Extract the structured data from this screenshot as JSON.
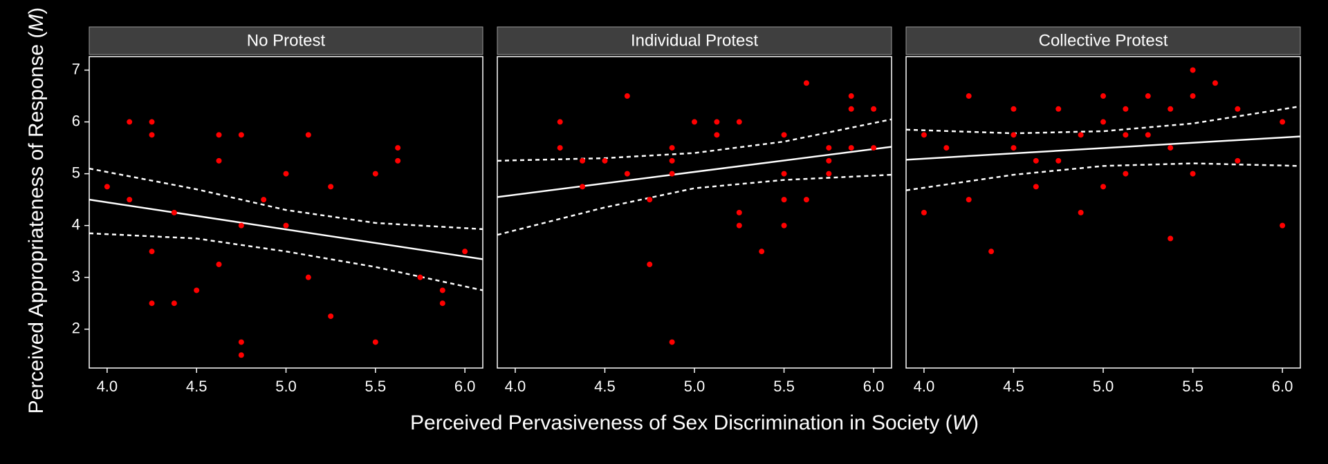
{
  "shared": {
    "ylabel": [
      "Perceived Appropriateness of Response (",
      "M",
      ")"
    ],
    "xlabel": [
      "Perceived Pervasiveness of Sex Discrimination in Society (",
      "W",
      ")"
    ],
    "ylim": [
      1.25,
      7.26
    ],
    "yticks": [
      2,
      3,
      4,
      5,
      6,
      7
    ]
  },
  "chart_data": [
    {
      "type": "scatter",
      "title": "No Protest",
      "xlim": [
        3.9,
        6.1
      ],
      "xticks": [
        {
          "value": 4,
          "label": "4.0"
        },
        {
          "value": 4.5,
          "label": "4.5"
        },
        {
          "value": 5,
          "label": "5.0"
        },
        {
          "value": 5.5,
          "label": "5.5"
        },
        {
          "value": 6,
          "label": "6.0"
        }
      ],
      "points": {
        "color": "#ff0000",
        "x": [
          4.0,
          4.125,
          4.125,
          4.25,
          4.25,
          4.25,
          4.25,
          4.375,
          4.375,
          4.5,
          4.625,
          4.625,
          4.625,
          4.75,
          4.75,
          4.75,
          4.75,
          4.875,
          5.0,
          5.0,
          5.125,
          5.125,
          5.25,
          5.25,
          5.5,
          5.5,
          5.625,
          5.625,
          5.75,
          5.875,
          5.875,
          6.0
        ],
        "values": [
          4.75,
          6,
          4.5,
          6,
          5.75,
          3.5,
          2.5,
          4.25,
          2.5,
          2.75,
          5.75,
          5.25,
          3.25,
          5.75,
          4.0,
          1.75,
          1.5,
          4.5,
          5.0,
          4.0,
          5.75,
          3.0,
          4.75,
          2.25,
          5.0,
          1.75,
          5.5,
          5.25,
          3.0,
          2.75,
          2.5,
          3.5
        ]
      },
      "fit": {
        "color": "#ffffff",
        "x": [
          3.9,
          6.1
        ],
        "values": [
          4.5,
          3.35
        ]
      },
      "ci_upper": {
        "color": "#ffffff",
        "x": [
          3.9,
          4.5,
          5.0,
          5.5,
          6.1
        ],
        "values": [
          5.1,
          4.7,
          4.3,
          4.05,
          3.93
        ]
      },
      "ci_lower": {
        "color": "#ffffff",
        "x": [
          3.9,
          4.5,
          5.0,
          5.5,
          6.1
        ],
        "values": [
          3.85,
          3.75,
          3.5,
          3.2,
          2.75
        ]
      }
    },
    {
      "type": "scatter",
      "title": "Individual Protest",
      "xlim": [
        3.9,
        6.1
      ],
      "xticks": [
        {
          "value": 4,
          "label": "4.0"
        },
        {
          "value": 4.5,
          "label": "4.5"
        },
        {
          "value": 5,
          "label": "5.0"
        },
        {
          "value": 5.5,
          "label": "5.5"
        },
        {
          "value": 6,
          "label": "6.0"
        }
      ],
      "points": {
        "color": "#ff0000",
        "x": [
          4.25,
          4.25,
          4.375,
          4.375,
          4.5,
          4.625,
          4.625,
          4.75,
          4.75,
          4.875,
          4.875,
          4.875,
          4.875,
          5.0,
          5.125,
          5.125,
          5.25,
          5.25,
          5.25,
          5.375,
          5.5,
          5.5,
          5.5,
          5.5,
          5.625,
          5.625,
          5.75,
          5.75,
          5.75,
          5.875,
          5.875,
          5.875,
          6.0,
          6.0
        ],
        "values": [
          6,
          5.5,
          5.25,
          4.75,
          5.25,
          6.5,
          5.0,
          4.5,
          3.25,
          5.5,
          5.25,
          5.0,
          1.75,
          6,
          6,
          5.75,
          6,
          4.25,
          4.0,
          3.5,
          5.75,
          5.0,
          4.5,
          4.0,
          6.75,
          4.5,
          5.5,
          5.25,
          5.0,
          6.5,
          6.25,
          5.5,
          6.25,
          5.5
        ]
      },
      "fit": {
        "color": "#ffffff",
        "x": [
          3.9,
          6.1
        ],
        "values": [
          4.55,
          5.52
        ]
      },
      "ci_upper": {
        "color": "#ffffff",
        "x": [
          3.9,
          4.5,
          5.0,
          5.5,
          6.1
        ],
        "values": [
          5.25,
          5.3,
          5.4,
          5.62,
          6.05
        ]
      },
      "ci_lower": {
        "color": "#ffffff",
        "x": [
          3.9,
          4.5,
          5.0,
          5.5,
          6.1
        ],
        "values": [
          3.82,
          4.35,
          4.72,
          4.88,
          4.98
        ]
      }
    },
    {
      "type": "scatter",
      "title": "Collective Protest",
      "xlim": [
        3.9,
        6.1
      ],
      "xticks": [
        {
          "value": 4,
          "label": "4.0"
        },
        {
          "value": 4.5,
          "label": "4.5"
        },
        {
          "value": 5,
          "label": "5.0"
        },
        {
          "value": 5.5,
          "label": "5.5"
        },
        {
          "value": 6,
          "label": "6.0"
        }
      ],
      "points": {
        "color": "#ff0000",
        "x": [
          4.0,
          4.0,
          4.125,
          4.25,
          4.25,
          4.375,
          4.5,
          4.5,
          4.5,
          4.625,
          4.625,
          4.75,
          4.75,
          4.875,
          4.875,
          5.0,
          5.0,
          5.0,
          5.125,
          5.125,
          5.125,
          5.25,
          5.25,
          5.375,
          5.375,
          5.375,
          5.5,
          5.5,
          5.5,
          5.625,
          5.75,
          5.75,
          6.0,
          6.0
        ],
        "values": [
          5.75,
          4.25,
          5.5,
          6.5,
          4.5,
          3.5,
          6.25,
          5.75,
          5.5,
          5.25,
          4.75,
          6.25,
          5.25,
          5.75,
          4.25,
          6.5,
          6.0,
          4.75,
          6.25,
          5.75,
          5.0,
          6.5,
          5.75,
          6.25,
          5.5,
          3.75,
          7.0,
          6.5,
          5.0,
          6.75,
          6.25,
          5.25,
          6.0,
          4.0
        ]
      },
      "fit": {
        "color": "#ffffff",
        "x": [
          3.9,
          6.1
        ],
        "values": [
          5.27,
          5.72
        ]
      },
      "ci_upper": {
        "color": "#ffffff",
        "x": [
          3.9,
          4.5,
          5.0,
          5.5,
          6.1
        ],
        "values": [
          5.85,
          5.78,
          5.82,
          5.97,
          6.3
        ]
      },
      "ci_lower": {
        "color": "#ffffff",
        "x": [
          3.9,
          4.5,
          5.0,
          5.5,
          6.1
        ],
        "values": [
          4.68,
          4.98,
          5.15,
          5.2,
          5.15
        ]
      }
    }
  ]
}
